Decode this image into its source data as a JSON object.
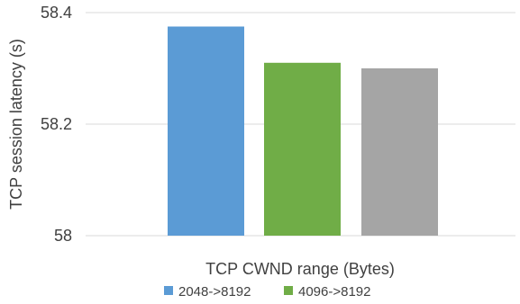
{
  "chart_data": {
    "type": "bar",
    "categories": [
      "2048->8192",
      "4096->8192",
      ""
    ],
    "values": [
      58.375,
      58.31,
      58.3
    ],
    "colors": [
      "#5b9bd5",
      "#70ad47",
      "#a5a5a5"
    ],
    "xlabel": "TCP CWND range (Bytes)",
    "ylabel": "TCP session latency (s)",
    "ylim": [
      58,
      58.4
    ],
    "yticks": [
      "58",
      "58.2",
      "58.4"
    ],
    "grid": true,
    "legend_position": "bottom",
    "legend": [
      {
        "name": "2048->8192",
        "color": "#5b9bd5"
      },
      {
        "name": "4096->8192",
        "color": "#70ad47"
      }
    ]
  }
}
